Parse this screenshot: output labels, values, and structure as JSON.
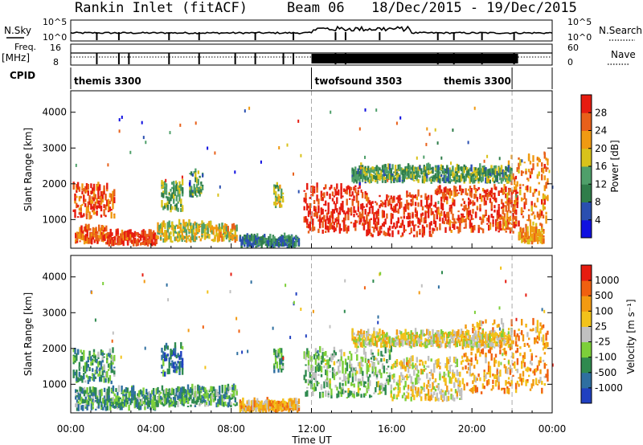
{
  "header": {
    "title": "Rankin Inlet (fitACF)",
    "beam": "Beam 06",
    "dates": "18/Dec/2015 - 19/Dec/2015"
  },
  "chart_data": [
    {
      "type": "line",
      "panel": "sky-search-noise",
      "left_label": "N.Sky",
      "right_label": "N.Search",
      "yticks_left": [
        "10^5",
        "10^0"
      ],
      "yticks_right": [
        "10^5",
        "10^0"
      ],
      "scale": "log"
    },
    {
      "type": "line",
      "panel": "frequency-nave",
      "left_label": "Freq.",
      "left_unit": "[MHz]",
      "right_label": "Nave",
      "yticks_left": [
        "16",
        "8"
      ],
      "yticks_right": [
        "60",
        "0"
      ]
    },
    {
      "type": "table",
      "panel": "cpid",
      "label": "CPID",
      "segments": [
        {
          "name": "themis 3300",
          "start_h": 0,
          "end_h": 12
        },
        {
          "name": "twofsound 3503",
          "start_h": 12,
          "end_h": 22
        },
        {
          "name": "themis 3300",
          "start_h": 22,
          "end_h": 24
        }
      ]
    },
    {
      "type": "heatmap",
      "panel": "power",
      "ylabel": "Slant Range [km]",
      "ylim": [
        200,
        4600
      ],
      "yticks": [
        1000,
        2000,
        3000,
        4000
      ],
      "xlim": [
        0,
        24
      ],
      "colorbar": {
        "label": "Power [dB]",
        "ticks": [
          "4",
          "8",
          "12",
          "16",
          "20",
          "24",
          "28"
        ],
        "colors": [
          "#1010e0",
          "#2a4fb0",
          "#2f7d4a",
          "#4f9f6a",
          "#d9c21a",
          "#f09a12",
          "#e8601a",
          "#e61c10"
        ]
      },
      "blobs": [
        {
          "t0": 0.1,
          "t1": 2.2,
          "r0": 1000,
          "r1": 1900,
          "level": 0.85
        },
        {
          "t0": 0.2,
          "t1": 1.8,
          "r0": 300,
          "r1": 700,
          "level": 0.8
        },
        {
          "t0": 1.8,
          "t1": 4.3,
          "r0": 250,
          "r1": 600,
          "level": 0.9
        },
        {
          "t0": 4.3,
          "t1": 7.0,
          "r0": 350,
          "r1": 850,
          "level": 0.55
        },
        {
          "t0": 7.0,
          "t1": 8.3,
          "r0": 350,
          "r1": 750,
          "level": 0.6
        },
        {
          "t0": 4.5,
          "t1": 5.6,
          "r0": 1200,
          "r1": 2000,
          "level": 0.45
        },
        {
          "t0": 5.9,
          "t1": 6.6,
          "r0": 1600,
          "r1": 2300,
          "level": 0.4
        },
        {
          "t0": 10.1,
          "t1": 10.6,
          "r0": 1300,
          "r1": 1900,
          "level": 0.5
        },
        {
          "t0": 8.4,
          "t1": 11.4,
          "r0": 200,
          "r1": 450,
          "level": 0.3
        },
        {
          "t0": 11.6,
          "t1": 14.5,
          "r0": 600,
          "r1": 1900,
          "level": 0.95
        },
        {
          "t0": 14.5,
          "t1": 18.0,
          "r0": 500,
          "r1": 1650,
          "level": 0.92
        },
        {
          "t0": 18.0,
          "t1": 22.3,
          "r0": 600,
          "r1": 1850,
          "level": 0.88
        },
        {
          "t0": 21.5,
          "t1": 23.8,
          "r0": 700,
          "r1": 2700,
          "level": 0.75
        },
        {
          "t0": 14.0,
          "t1": 22.0,
          "r0": 2000,
          "r1": 2400,
          "level": 0.4
        },
        {
          "t0": 22.3,
          "t1": 23.6,
          "r0": 300,
          "r1": 650,
          "level": 0.7
        }
      ]
    },
    {
      "type": "heatmap",
      "panel": "velocity",
      "ylabel": "Slant Range [km]",
      "xlabel": "Time UT",
      "ylim": [
        200,
        4600
      ],
      "yticks": [
        1000,
        2000,
        3000,
        4000
      ],
      "xlim": [
        0,
        24
      ],
      "xticks": [
        "00:00",
        "04:00",
        "08:00",
        "12:00",
        "16:00",
        "20:00",
        "00:00"
      ],
      "colorbar": {
        "label": "Velocity [m s⁻¹]",
        "ticks": [
          "1000",
          "500",
          "100",
          "25",
          "-25",
          "-100",
          "-500",
          "-1000"
        ],
        "colors": [
          "#2040c0",
          "#2f6fa0",
          "#2f8a4f",
          "#7dcf3a",
          "#c0c0c0",
          "#f2c21a",
          "#f29a12",
          "#f06010",
          "#e61c10"
        ]
      },
      "blobs": [
        {
          "t0": 0.1,
          "t1": 2.2,
          "r0": 1000,
          "r1": 1900,
          "level": 0.3
        },
        {
          "t0": 0.2,
          "t1": 4.3,
          "r0": 250,
          "r1": 800,
          "level": 0.3
        },
        {
          "t0": 4.3,
          "t1": 8.3,
          "r0": 350,
          "r1": 850,
          "level": 0.32
        },
        {
          "t0": 4.5,
          "t1": 5.6,
          "r0": 1200,
          "r1": 2000,
          "level": 0.2
        },
        {
          "t0": 10.1,
          "t1": 10.6,
          "r0": 1300,
          "r1": 1900,
          "level": 0.3
        },
        {
          "t0": 11.6,
          "t1": 16.0,
          "r0": 600,
          "r1": 1900,
          "level": 0.4
        },
        {
          "t0": 16.0,
          "t1": 19.5,
          "r0": 500,
          "r1": 1650,
          "level": 0.55
        },
        {
          "t0": 19.5,
          "t1": 23.8,
          "r0": 700,
          "r1": 2700,
          "level": 0.7
        },
        {
          "t0": 14.0,
          "t1": 22.0,
          "r0": 2000,
          "r1": 2400,
          "level": 0.55
        },
        {
          "t0": 8.4,
          "t1": 11.4,
          "r0": 200,
          "r1": 450,
          "level": 0.65
        }
      ]
    }
  ]
}
